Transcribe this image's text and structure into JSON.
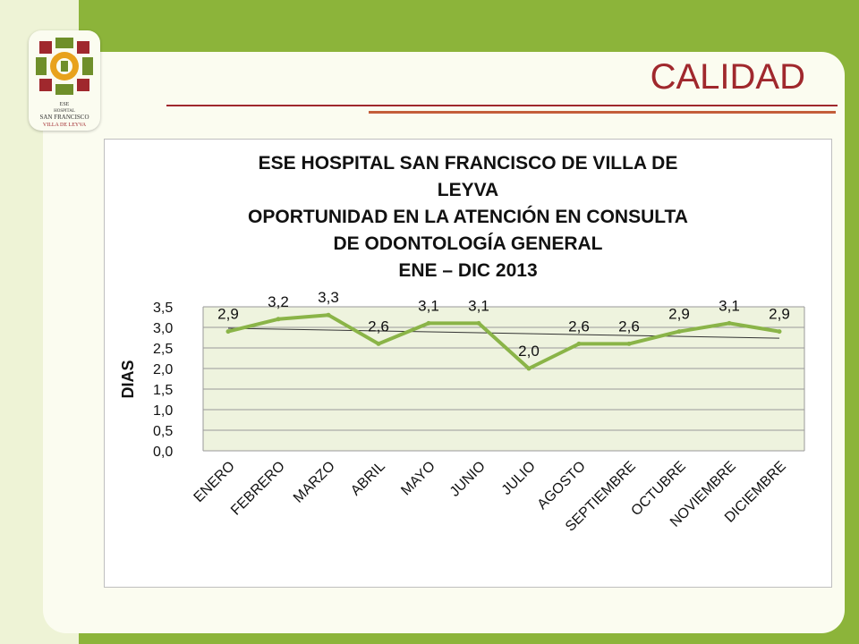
{
  "slide": {
    "title": "CALIDAD",
    "logo": {
      "lines": [
        "ESE",
        "HOSPITAL",
        "SAN FRANCISCO",
        "VILLA DE LEYVA"
      ]
    }
  },
  "colors": {
    "background": "#8cb43a",
    "panel": "#fbfcf0",
    "title": "#a0282d",
    "series": "#8ab448",
    "trendline": "#333333"
  },
  "chart_data": {
    "type": "line",
    "title_lines": [
      "ESE HOSPITAL SAN FRANCISCO DE VILLA DE",
      "LEYVA",
      "OPORTUNIDAD EN LA ATENCIÓN EN CONSULTA",
      "DE ODONTOLOGÍA GENERAL",
      "ENE – DIC 2013"
    ],
    "ylabel": "DIAS",
    "xlabel": "",
    "categories": [
      "ENERO",
      "FEBRERO",
      "MARZO",
      "ABRIL",
      "MAYO",
      "JUNIO",
      "JULIO",
      "AGOSTO",
      "SEPTIEMBRE",
      "OCTUBRE",
      "NOVIEMBRE",
      "DICIEMBRE"
    ],
    "values": [
      2.9,
      3.2,
      3.3,
      2.6,
      3.1,
      3.1,
      2.0,
      2.6,
      2.6,
      2.9,
      3.1,
      2.9
    ],
    "data_labels": [
      "2,9",
      "3,2",
      "3,3",
      "2,6",
      "3,1",
      "3,1",
      "2,0",
      "2,6",
      "2,6",
      "2,9",
      "3,1",
      "2,9"
    ],
    "yticks": [
      0,
      0.5,
      1.0,
      1.5,
      2.0,
      2.5,
      3.0,
      3.5
    ],
    "ytick_labels": [
      "0,0",
      "0,5",
      "1,0",
      "1,5",
      "2,0",
      "2,5",
      "3,0",
      "3,5"
    ],
    "ylim": [
      0,
      3.5
    ],
    "grid": true,
    "trendline": "linear",
    "legend": "none"
  }
}
